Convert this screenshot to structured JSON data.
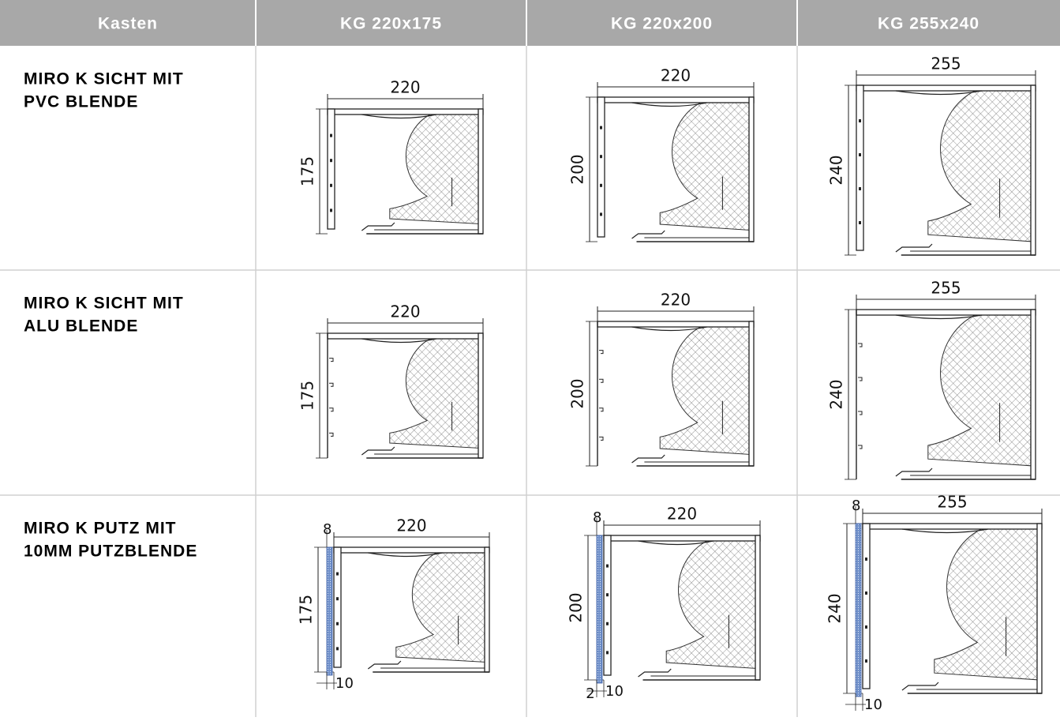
{
  "table": {
    "header": [
      "Kasten",
      "KG 220x175",
      "KG 220x200",
      "KG 255x240"
    ],
    "rows": [
      {
        "label": [
          "MIRO K SICHT MIT",
          "PVC BLENDE"
        ],
        "cells": [
          {
            "width": "220",
            "height": "175"
          },
          {
            "width": "220",
            "height": "200"
          },
          {
            "width": "255",
            "height": "240"
          }
        ]
      },
      {
        "label": [
          "MIRO K SICHT MIT",
          "ALU BLENDE"
        ],
        "cells": [
          {
            "width": "220",
            "height": "175"
          },
          {
            "width": "220",
            "height": "200"
          },
          {
            "width": "255",
            "height": "240"
          }
        ]
      },
      {
        "label": [
          "MIRO K PUTZ MIT",
          "10MM PUTZBLENDE"
        ],
        "cells": [
          {
            "plaster": "8",
            "width": "220",
            "height": "175",
            "blende": "10"
          },
          {
            "plaster": "8",
            "width": "220",
            "height": "200",
            "gap": "2",
            "blende": "10"
          },
          {
            "plaster": "8",
            "width": "255",
            "height": "240",
            "blende": "10"
          }
        ]
      }
    ]
  }
}
